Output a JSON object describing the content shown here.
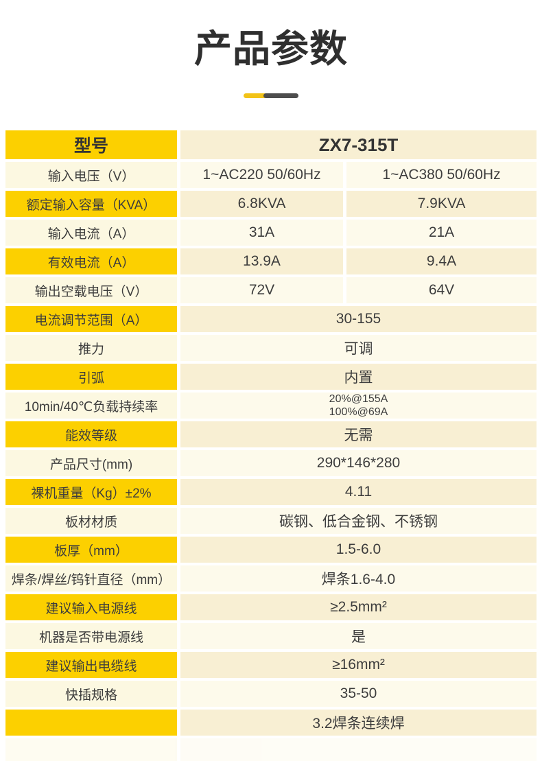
{
  "header": {
    "title": "产品参数"
  },
  "colors": {
    "bright_yellow": "#fcd000",
    "light_yellow": "#fcf8e1",
    "cream": "#f8efd3",
    "pale_cream": "#fdfaeb",
    "accent_bar_yellow": "#f2c318",
    "accent_bar_dark": "#4d4d4d",
    "text": "#3d3d3d"
  },
  "table": {
    "rows": [
      {
        "label": "型号",
        "value": "ZX7-315T",
        "tone": "bright",
        "header": true
      },
      {
        "label": "输入电压（V）",
        "values": [
          "1~AC220 50/60Hz",
          "1~AC380 50/60Hz"
        ],
        "tone": "light"
      },
      {
        "label": "额定输入容量（KVA）",
        "values": [
          "6.8KVA",
          "7.9KVA"
        ],
        "tone": "bright"
      },
      {
        "label": "输入电流（A）",
        "values": [
          "31A",
          "21A"
        ],
        "tone": "light"
      },
      {
        "label": "有效电流（A）",
        "values": [
          "13.9A",
          "9.4A"
        ],
        "tone": "bright"
      },
      {
        "label": "输出空载电压（V）",
        "values": [
          "72V",
          "64V"
        ],
        "tone": "light"
      },
      {
        "label": "电流调节范围（A）",
        "value": "30-155",
        "tone": "bright"
      },
      {
        "label": "推力",
        "value": "可调",
        "tone": "light"
      },
      {
        "label": "引弧",
        "value": "内置",
        "tone": "bright"
      },
      {
        "label": "10min/40℃负载持续率",
        "value_lines": [
          "20%@155A",
          "100%@69A"
        ],
        "tone": "light"
      },
      {
        "label": "能效等级",
        "value": "无需",
        "tone": "bright"
      },
      {
        "label": "产品尺寸(mm)",
        "value": "290*146*280",
        "tone": "light"
      },
      {
        "label": "裸机重量（Kg）±2%",
        "value": "4.11",
        "tone": "bright"
      },
      {
        "label": "板材材质",
        "value": "碳钢、低合金钢、不锈钢",
        "tone": "light"
      },
      {
        "label": "板厚（mm）",
        "value": "1.5-6.0",
        "tone": "bright"
      },
      {
        "label": "焊条/焊丝/钨针直径（mm）",
        "value": "焊条1.6-4.0",
        "tone": "light"
      },
      {
        "label": "建议输入电源线",
        "value": "≥2.5mm²",
        "tone": "bright"
      },
      {
        "label": "机器是否带电源线",
        "value": "是",
        "tone": "light"
      },
      {
        "label": "建议输出电缆线",
        "value": "≥16mm²",
        "tone": "bright"
      },
      {
        "label": "快插规格",
        "value": "35-50",
        "tone": "light"
      },
      {
        "label": "",
        "value": "3.2焊条连续焊",
        "tone": "bright"
      }
    ]
  }
}
